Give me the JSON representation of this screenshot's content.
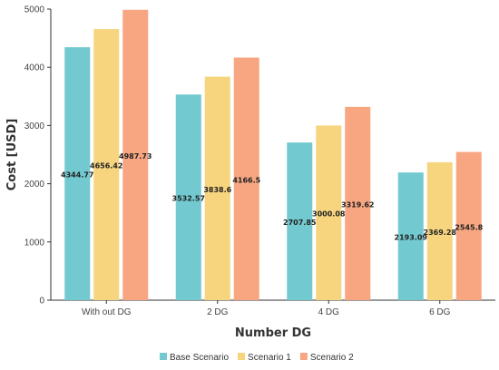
{
  "chart_data": {
    "type": "bar",
    "categories": [
      "With out DG",
      "2 DG",
      "4 DG",
      "6 DG"
    ],
    "series": [
      {
        "name": "Base Scenario",
        "values": [
          4344.77,
          3532.57,
          2707.85,
          2193.09
        ],
        "color": "#72c9cf"
      },
      {
        "name": "Scenario 1",
        "values": [
          4656.42,
          3838.6,
          3000.08,
          2369.28
        ],
        "color": "#f7d57f"
      },
      {
        "name": "Scenario 2",
        "values": [
          4987.73,
          4166.5,
          3319.62,
          2545.8
        ],
        "color": "#f7a681"
      }
    ],
    "data_labels": [
      [
        "4344.77",
        "3532.57",
        "2707.85",
        "2193.09"
      ],
      [
        "4656.42",
        "3838.6",
        "3000.08",
        "2369.28"
      ],
      [
        "4987.73",
        "4166.5",
        "3319.62",
        "2545.8"
      ]
    ],
    "title": "",
    "xlabel": "Number DG",
    "ylabel": "Cost [USD]",
    "ylim": [
      0,
      5000
    ],
    "yticks": [
      0,
      1000,
      2000,
      3000,
      4000,
      5000
    ],
    "grid": false,
    "legend_position": "bottom-center"
  }
}
